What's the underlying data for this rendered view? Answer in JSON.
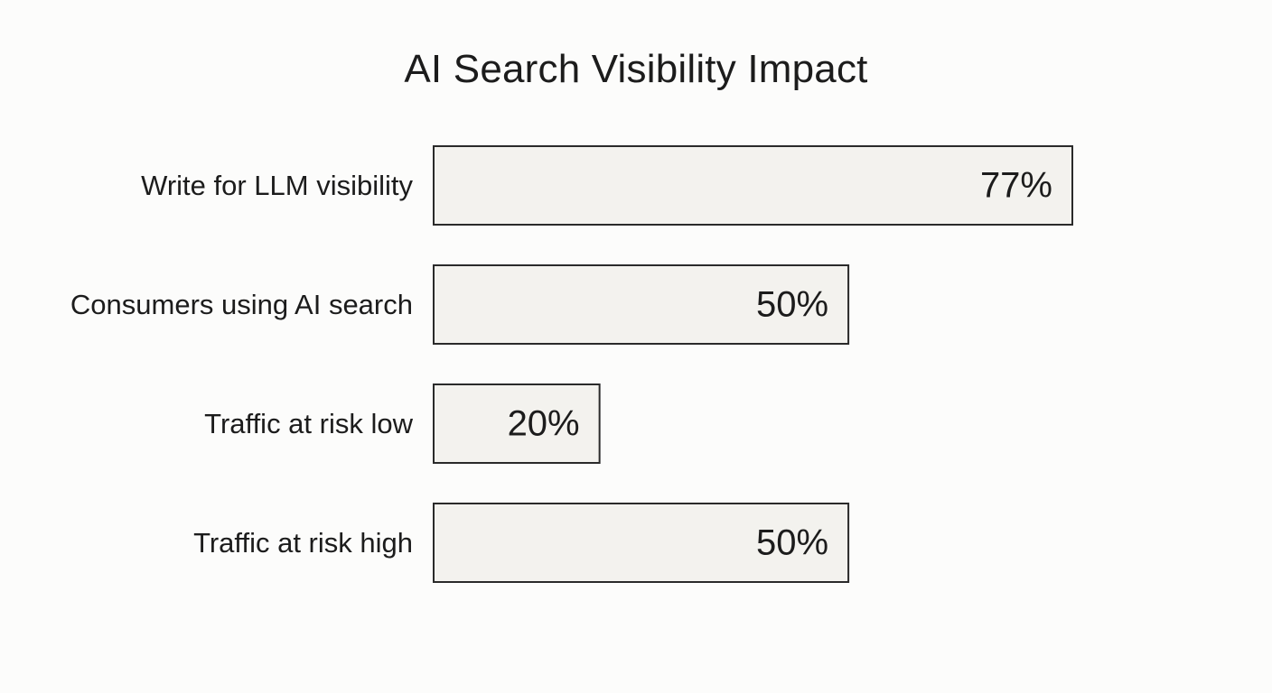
{
  "chart_data": {
    "type": "bar",
    "orientation": "horizontal",
    "title": "AI Search Visibility Impact",
    "categories": [
      "Write for LLM visibility",
      "Consumers using AI search",
      "Traffic at risk low",
      "Traffic at risk high"
    ],
    "values": [
      77,
      50,
      20,
      50
    ],
    "value_labels": [
      "77%",
      "50%",
      "20%",
      "50%"
    ],
    "unit": "%",
    "xlabel": "",
    "ylabel": "",
    "grid": false,
    "legend": "none",
    "colors": {
      "bar_fill": "#f3f2ee",
      "bar_stroke": "#2a2a2a",
      "text": "#1c1c1c",
      "background": "#fcfcfb"
    }
  }
}
